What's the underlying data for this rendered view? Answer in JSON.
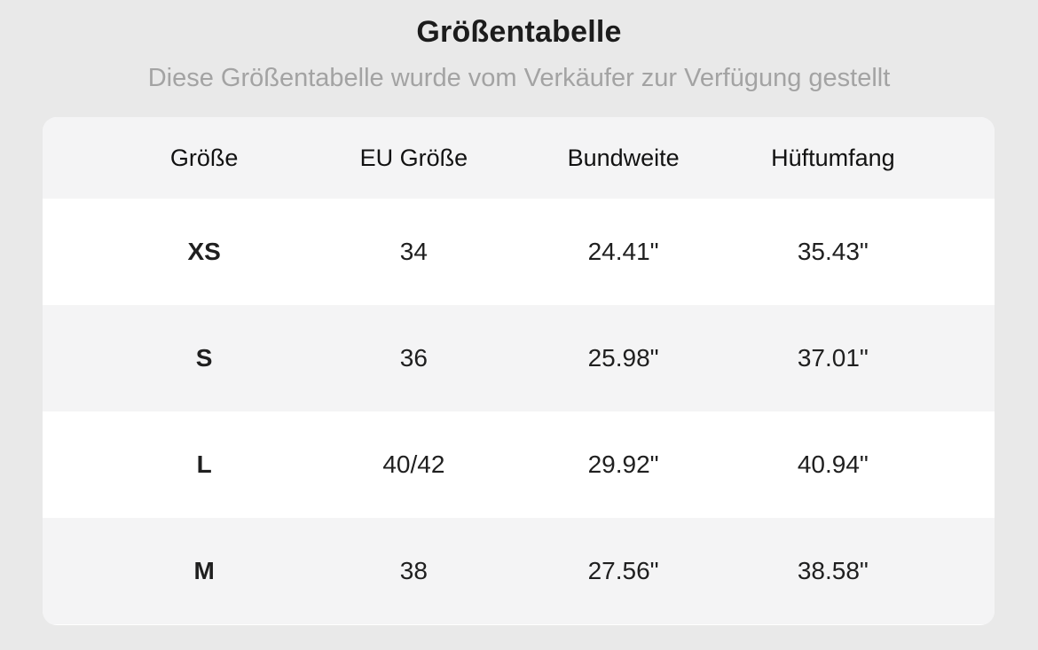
{
  "page": {
    "title": "Größentabelle",
    "subtitle": "Diese Größentabelle wurde vom Verkäufer zur Verfügung gestellt"
  },
  "table": {
    "columns": [
      "Größe",
      "EU Größe",
      "Bundweite",
      "Hüftumfang"
    ],
    "rows": [
      {
        "size": "XS",
        "eu_size": "34",
        "waist": "24.41\"",
        "hip": "35.43\""
      },
      {
        "size": "S",
        "eu_size": "36",
        "waist": "25.98\"",
        "hip": "37.01\""
      },
      {
        "size": "L",
        "eu_size": "40/42",
        "waist": "29.92\"",
        "hip": "40.94\""
      },
      {
        "size": "M",
        "eu_size": "38",
        "waist": "27.56\"",
        "hip": "38.58\""
      }
    ]
  },
  "colors": {
    "page_background": "#e9e9e9",
    "card_background": "#ffffff",
    "stripe_background": "#f4f4f5",
    "title_text": "#1c1c1c",
    "subtitle_text": "#a3a3a3",
    "cell_text": "#1f1f1f"
  }
}
